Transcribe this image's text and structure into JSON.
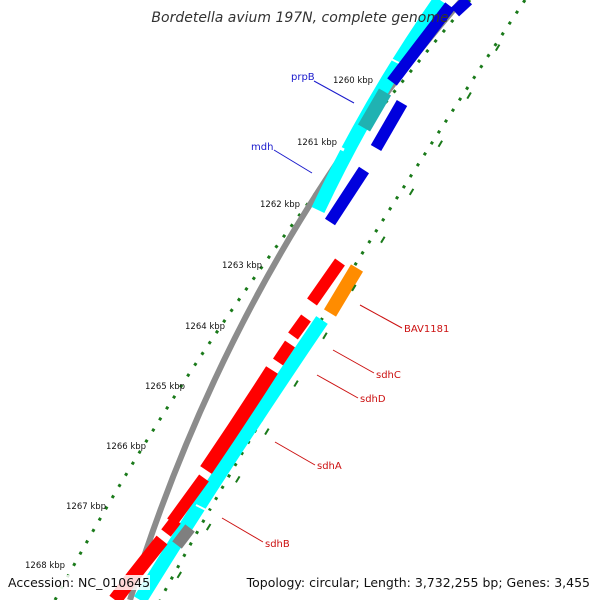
{
  "title": "Bordetella avium 197N, complete genome",
  "ticks": [
    "1260 kbp",
    "1261 kbp",
    "1262 kbp",
    "1263 kbp",
    "1264 kbp",
    "1265 kbp",
    "1266 kbp",
    "1267 kbp",
    "1268 kbp"
  ],
  "gene_labels": {
    "prpB": "prpB",
    "mdh": "mdh",
    "bav1181": "BAV1181",
    "sdhC": "sdhC",
    "sdhD": "sdhD",
    "sdhA": "sdhA",
    "sdhB": "sdhB"
  },
  "footer": {
    "accession": "Accession: NC_010645",
    "summary": "Topology: circular; Length: 3,732,255 bp; Genes: 3,455"
  },
  "colors": {
    "backbone": "#8c8c8c",
    "forward_cds": "#0000dd",
    "forward_rna_like": "#00ffff",
    "reverse_cds": "#ff0000",
    "other_gene": "#ff8c00",
    "gene_label_blue": "#1a1acc",
    "gene_label_red": "#cc1111",
    "tick_marks": "#1a7a1a"
  }
}
